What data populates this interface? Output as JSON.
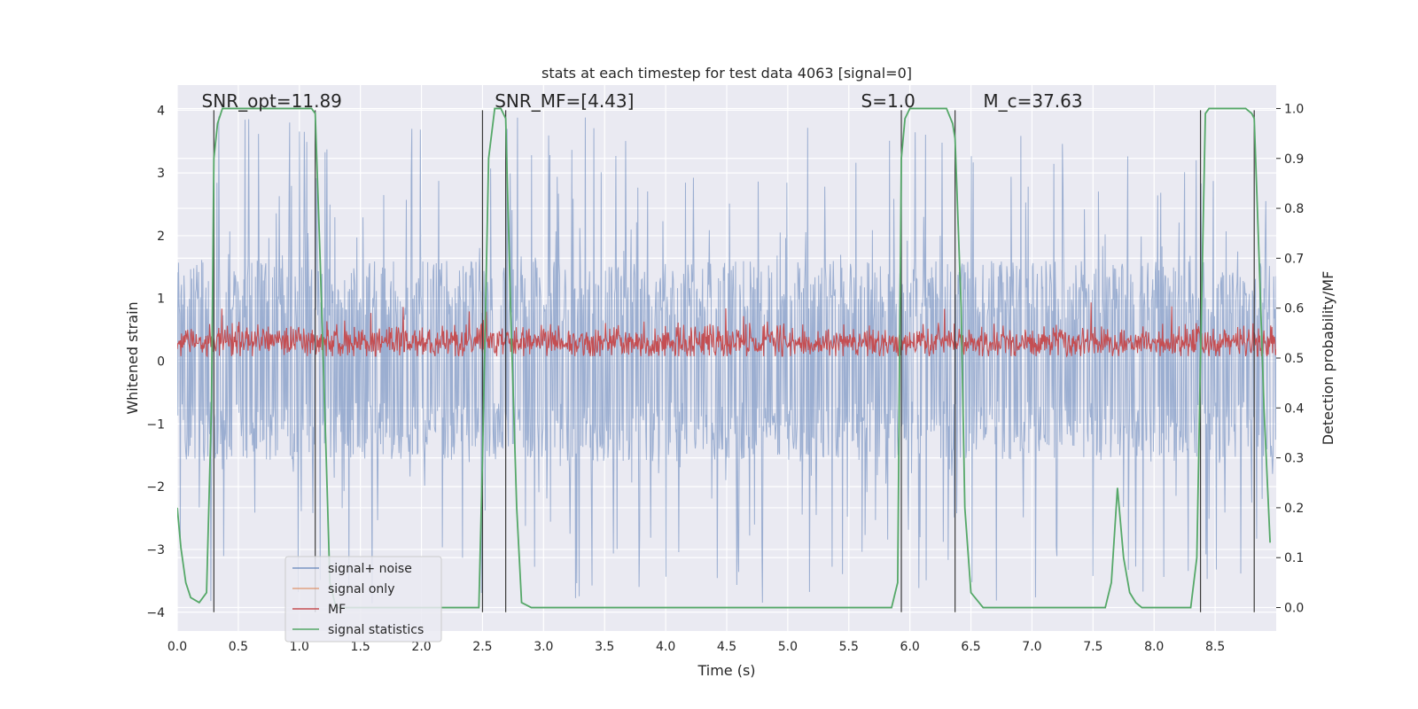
{
  "chart_data": {
    "type": "line",
    "title": "stats at each timestep for test data 4063 [signal=0]",
    "xlabel": "Time (s)",
    "ylabel": "Whitened strain",
    "y2label": "Detection probability/MF",
    "xlim": [
      0.0,
      9.0
    ],
    "ylim": [
      -4.3,
      4.4
    ],
    "y2lim": [
      -0.047,
      1.047
    ],
    "xticks": [
      0.0,
      0.5,
      1.0,
      1.5,
      2.0,
      2.5,
      3.0,
      3.5,
      4.0,
      4.5,
      5.0,
      5.5,
      6.0,
      6.5,
      7.0,
      7.5,
      8.0,
      8.5
    ],
    "xtick_labels": [
      "0.0",
      "0.5",
      "1.0",
      "1.5",
      "2.0",
      "2.5",
      "3.0",
      "3.5",
      "4.0",
      "4.5",
      "5.0",
      "5.5",
      "6.0",
      "6.5",
      "7.0",
      "7.5",
      "8.0",
      "8.5"
    ],
    "yticks": [
      -4,
      -3,
      -2,
      -1,
      0,
      1,
      2,
      3,
      4
    ],
    "ytick_labels": [
      "−4",
      "−3",
      "−2",
      "−1",
      "0",
      "1",
      "2",
      "3",
      "4"
    ],
    "y2ticks": [
      0.0,
      0.1,
      0.2,
      0.3,
      0.4,
      0.5,
      0.6,
      0.7,
      0.8,
      0.9,
      1.0
    ],
    "y2tick_labels": [
      "0.0",
      "0.1",
      "0.2",
      "0.3",
      "0.4",
      "0.5",
      "0.6",
      "0.7",
      "0.8",
      "0.9",
      "1.0"
    ],
    "grid": true,
    "legend_position": "lower-left",
    "annotations": [
      {
        "text": "SNR_opt=11.89",
        "x": 0.2,
        "y": 4.05
      },
      {
        "text": "SNR_MF=[4.43]",
        "x": 2.6,
        "y": 4.05
      },
      {
        "text": "S=1.0",
        "x": 5.6,
        "y": 4.05
      },
      {
        "text": "M_c=37.63",
        "x": 6.6,
        "y": 4.05
      }
    ],
    "vlines": [
      0.3,
      1.13,
      2.5,
      2.69,
      5.93,
      6.37,
      8.38,
      8.82
    ],
    "series": [
      {
        "name": "signal+ noise",
        "color": "#4C72B0",
        "kind": "noise",
        "x_range": [
          0.0,
          9.0
        ],
        "samples": 1800,
        "seed": 4063,
        "typical_amplitude": 1.6,
        "peak_amplitude": 3.9
      },
      {
        "name": "signal only",
        "color": "#DD8452",
        "kind": "flat",
        "values": []
      },
      {
        "name": "MF",
        "color": "#C44E52",
        "kind": "mf",
        "x_range": [
          0.0,
          9.0
        ],
        "samples": 1800,
        "seed": 77,
        "baseline": 0.3,
        "spread": 0.25,
        "max": 0.95
      },
      {
        "name": "signal statistics",
        "color": "#55A868",
        "kind": "line",
        "axis": "right",
        "x": [
          0.0,
          0.03,
          0.07,
          0.11,
          0.18,
          0.24,
          0.28,
          0.3,
          0.33,
          0.37,
          0.4,
          0.45,
          1.0,
          1.1,
          1.13,
          1.17,
          1.22,
          1.25,
          1.3,
          1.4,
          2.0,
          2.3,
          2.4,
          2.47,
          2.5,
          2.55,
          2.6,
          2.65,
          2.69,
          2.73,
          2.78,
          2.82,
          2.9,
          3.5,
          5.0,
          5.85,
          5.9,
          5.93,
          5.96,
          6.0,
          6.05,
          6.3,
          6.35,
          6.37,
          6.42,
          6.45,
          6.5,
          6.6,
          7.0,
          7.5,
          7.6,
          7.65,
          7.7,
          7.75,
          7.8,
          7.85,
          7.9,
          8.0,
          8.2,
          8.3,
          8.35,
          8.38,
          8.42,
          8.45,
          8.5,
          8.75,
          8.8,
          8.82,
          8.86,
          8.9,
          8.95
        ],
        "values": [
          0.2,
          0.12,
          0.05,
          0.02,
          0.01,
          0.03,
          0.4,
          0.9,
          0.97,
          1.0,
          1.0,
          1.0,
          1.0,
          1.0,
          0.99,
          0.7,
          0.3,
          0.05,
          0.0,
          0.0,
          0.0,
          0.0,
          0.0,
          0.0,
          0.3,
          0.9,
          1.0,
          1.0,
          0.98,
          0.6,
          0.2,
          0.01,
          0.0,
          0.0,
          0.0,
          0.0,
          0.05,
          0.9,
          0.98,
          1.0,
          1.0,
          1.0,
          0.97,
          0.94,
          0.6,
          0.2,
          0.03,
          0.0,
          0.0,
          0.0,
          0.0,
          0.05,
          0.24,
          0.1,
          0.03,
          0.01,
          0.0,
          0.0,
          0.0,
          0.0,
          0.1,
          0.5,
          0.99,
          1.0,
          1.0,
          1.0,
          0.99,
          0.98,
          0.7,
          0.4,
          0.13
        ]
      }
    ]
  }
}
